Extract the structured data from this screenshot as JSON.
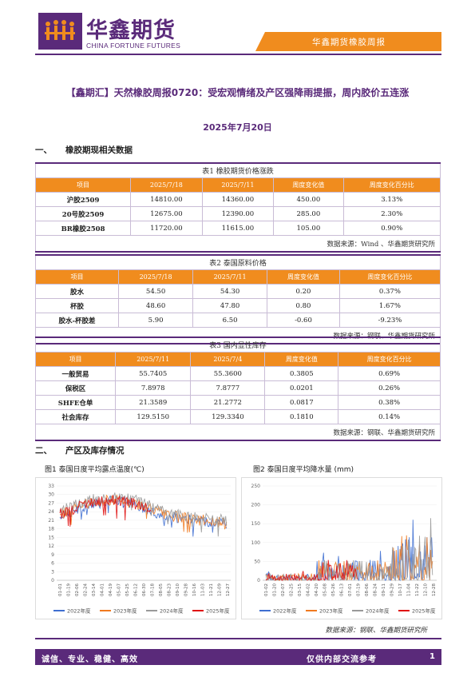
{
  "header": {
    "logo_cn": "华鑫期货",
    "logo_en": "CHINA FORTUNE FUTURES",
    "band_text": "华鑫期货橡胶周报"
  },
  "title": "【鑫期汇】天然橡胶周报0720：受宏观情绪及产区强降雨提振，周内胶价五连涨",
  "date": "2025年7月20日",
  "section1": {
    "num": "一、",
    "title": "橡胶期现相关数据"
  },
  "section2": {
    "num": "二、",
    "title": "产区及库存情况"
  },
  "table1": {
    "caption": "表1 橡胶期货价格涨跌",
    "headers": [
      "项目",
      "2025/7/18",
      "2025/7/11",
      "周度变化值",
      "周度变化百分比"
    ],
    "rows": [
      [
        "沪胶2509",
        "14810.00",
        "14360.00",
        "450.00",
        "3.13%"
      ],
      [
        "20号胶2509",
        "12675.00",
        "12390.00",
        "285.00",
        "2.30%"
      ],
      [
        "BR橡胶2508",
        "11720.00",
        "11615.00",
        "105.00",
        "0.90%"
      ]
    ],
    "source": "数据来源：Wind 、华鑫期货研究所"
  },
  "table2": {
    "caption": "表2 泰国原料价格",
    "headers": [
      "项目",
      "2025/7/18",
      "2025/7/11",
      "周度变化值",
      "周度变化百分比"
    ],
    "rows": [
      [
        "胶水",
        "54.50",
        "54.30",
        "0.20",
        "0.37%"
      ],
      [
        "杯胶",
        "48.60",
        "47.80",
        "0.80",
        "1.67%"
      ],
      [
        "胶水-杯胶差",
        "5.90",
        "6.50",
        "-0.60",
        "-9.23%"
      ]
    ],
    "source": "数据来源：钢联、华鑫期货研究所"
  },
  "table3": {
    "caption": "表3 国内显性库存",
    "headers": [
      "项目",
      "2025/7/11",
      "2025/7/4",
      "周度变化值",
      "周度变化百分比"
    ],
    "rows": [
      [
        "一般贸易",
        "55.7405",
        "55.3600",
        "0.3805",
        "0.69%"
      ],
      [
        "保税区",
        "7.8978",
        "7.8777",
        "0.0201",
        "0.26%"
      ],
      [
        "SHFE仓单",
        "21.3589",
        "21.2772",
        "0.0817",
        "0.38%"
      ],
      [
        "社会库存",
        "129.5150",
        "129.3340",
        "0.1810",
        "0.14%"
      ]
    ],
    "source": "数据来源：钢联、华鑫期货研究所"
  },
  "figure_source": "数据来源：钢联、华鑫期货研究所",
  "footer": {
    "left": "诚信、专业、稳健、高效",
    "right": "仅供内部交流参考",
    "page": "1"
  },
  "colors": {
    "purple": "#5a2a7a",
    "orange": "#f08c1e",
    "s2022": "#3f6fd1",
    "s2023": "#f07a20",
    "s2024": "#999999",
    "s2025": "#e01010"
  },
  "chart_data": [
    {
      "type": "line",
      "title": "图1 泰国日度平均露点温度(℃)",
      "ylim": [
        0,
        33
      ],
      "yticks": [
        "0",
        "3",
        "6",
        "9",
        "12",
        "15",
        "18",
        "21",
        "24",
        "27",
        "30",
        "33"
      ],
      "xticks": [
        "01-01",
        "01-19",
        "02-06",
        "02-24",
        "03-14",
        "04-01",
        "04-19",
        "05-07",
        "05-25",
        "06-12",
        "06-30",
        "07-18",
        "08-05",
        "08-23",
        "09-10",
        "09-28",
        "10-16",
        "11-03",
        "11-21",
        "12-09",
        "12-27"
      ],
      "series": [
        {
          "name": "2022年度",
          "color": "#3f6fd1"
        },
        {
          "name": "2023年度",
          "color": "#f07a20"
        },
        {
          "name": "2024年度",
          "color": "#999999"
        },
        {
          "name": "2025年度",
          "color": "#e01010"
        }
      ]
    },
    {
      "type": "line",
      "title": "图2 泰国日度平均降水量 (mm)",
      "ylim": [
        0,
        250
      ],
      "yticks": [
        "0",
        "50",
        "100",
        "150",
        "200",
        "250"
      ],
      "xticks": [
        "01-02",
        "01-20",
        "02-07",
        "02-25",
        "03-15",
        "04-02",
        "04-20",
        "05-08",
        "05-26",
        "06-13",
        "07-01",
        "07-19",
        "08-06",
        "08-24",
        "09-11",
        "09-29",
        "10-17",
        "11-04",
        "11-22",
        "12-10",
        "12-28"
      ],
      "series": [
        {
          "name": "2022年度",
          "color": "#3f6fd1"
        },
        {
          "name": "2023年度",
          "color": "#f07a20"
        },
        {
          "name": "2024年度",
          "color": "#999999"
        },
        {
          "name": "2025年度",
          "color": "#e01010"
        }
      ]
    }
  ]
}
